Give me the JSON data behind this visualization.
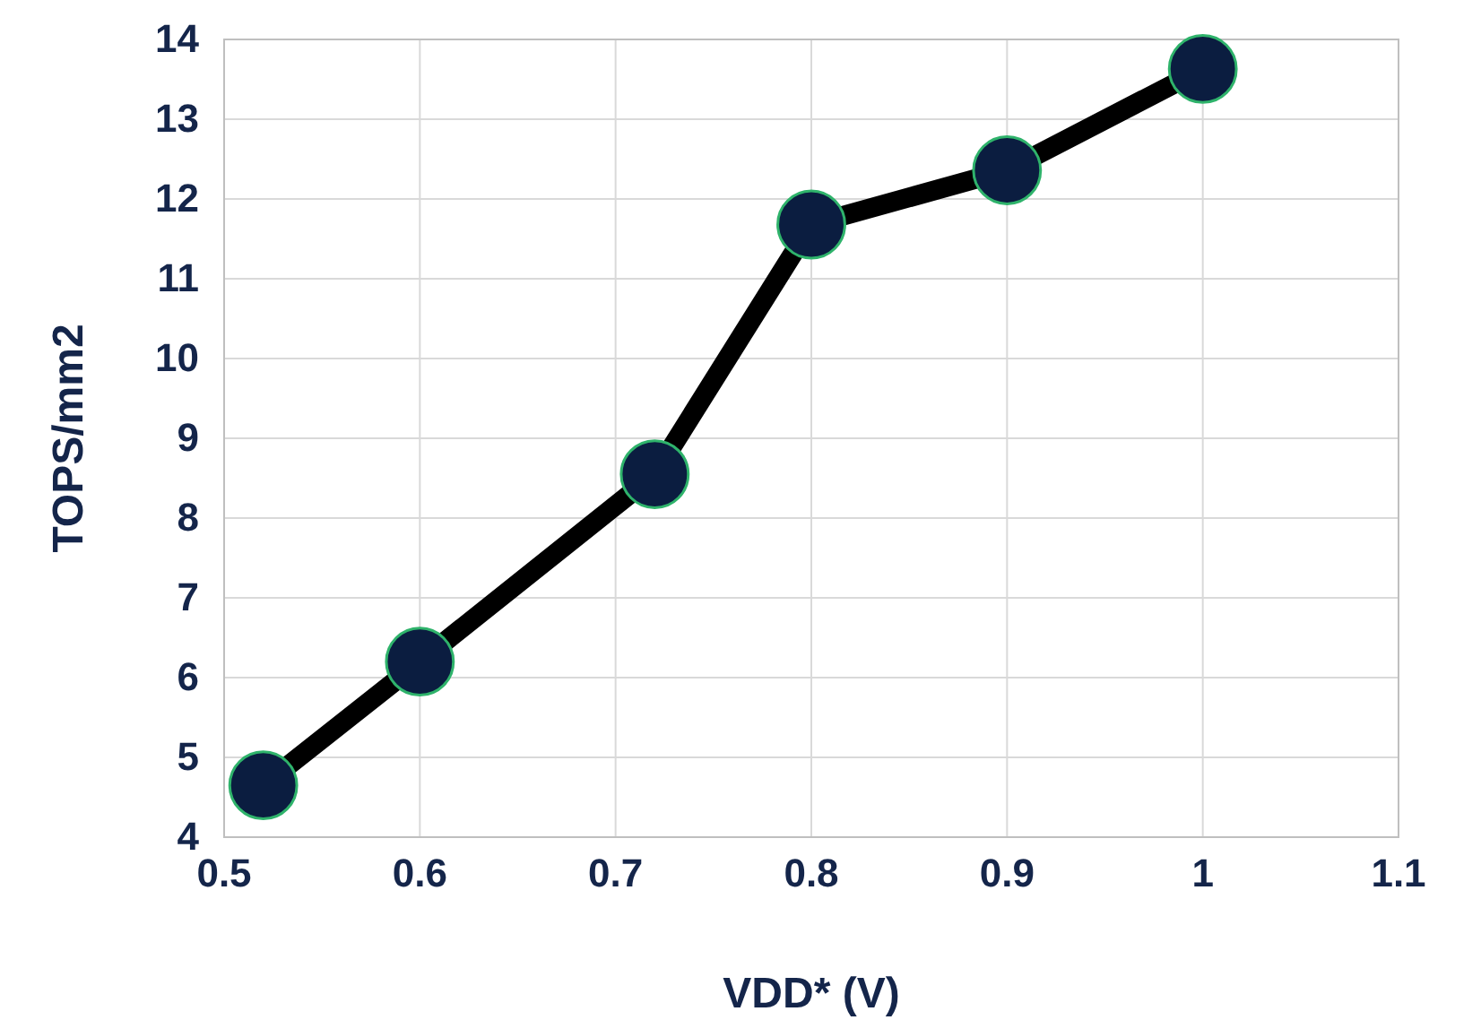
{
  "chart_data": {
    "type": "line",
    "xlabel": "VDD* (V)",
    "ylabel": "TOPS/mm2",
    "x": [
      0.52,
      0.6,
      0.72,
      0.8,
      0.9,
      1.0
    ],
    "series": [
      {
        "color": "#000000",
        "values": [
          4.65,
          6.2,
          8.55,
          11.68,
          12.36,
          13.63
        ]
      }
    ],
    "xlim": [
      0.5,
      1.1
    ],
    "xticks": [
      0.5,
      0.6,
      0.7,
      0.8,
      0.9,
      1,
      1.1
    ],
    "ylim": [
      4,
      14
    ],
    "yticks": [
      4,
      5,
      6,
      7,
      8,
      9,
      10,
      11,
      12,
      13,
      14
    ],
    "grid": true,
    "marker": "circle",
    "line_style": "solid"
  }
}
